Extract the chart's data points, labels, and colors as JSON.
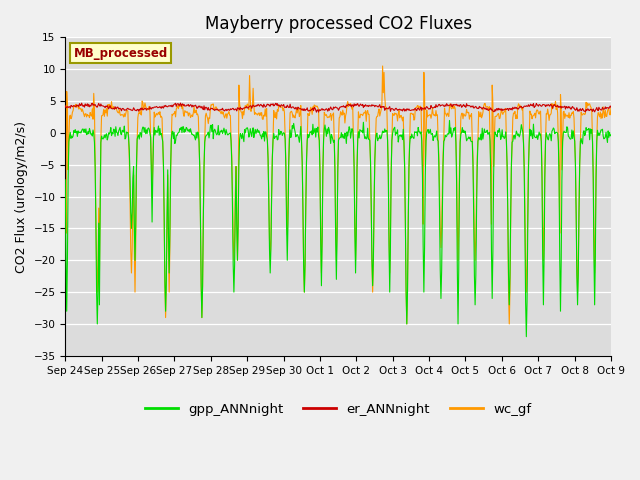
{
  "title": "Mayberry processed CO2 Fluxes",
  "ylabel": "CO2 Flux (urology/m2/s)",
  "ylim": [
    -35,
    15
  ],
  "yticks": [
    -35,
    -30,
    -25,
    -20,
    -15,
    -10,
    -5,
    0,
    5,
    10,
    15
  ],
  "background_color": "#dcdcdc",
  "fig_background": "#f0f0f0",
  "legend_label": "MB_processed",
  "legend_text_color": "#990000",
  "legend_box_color": "#ffffcc",
  "legend_box_edge": "#999900",
  "series_colors": {
    "gpp": "#00dd00",
    "er": "#cc0000",
    "wc": "#ff9900"
  },
  "series_labels": {
    "gpp": "gpp_ANNnight",
    "er": "er_ANNnight",
    "wc": "wc_gf"
  },
  "xtick_labels": [
    "Sep 24",
    "Sep 25",
    "Sep 26",
    "Sep 27",
    "Sep 28",
    "Sep 29",
    "Sep 30",
    "Oct 1",
    "Oct 2",
    "Oct 3",
    "Oct 4",
    "Oct 5",
    "Oct 6",
    "Oct 7",
    "Oct 8",
    "Oct 9"
  ],
  "linewidth": 0.8
}
